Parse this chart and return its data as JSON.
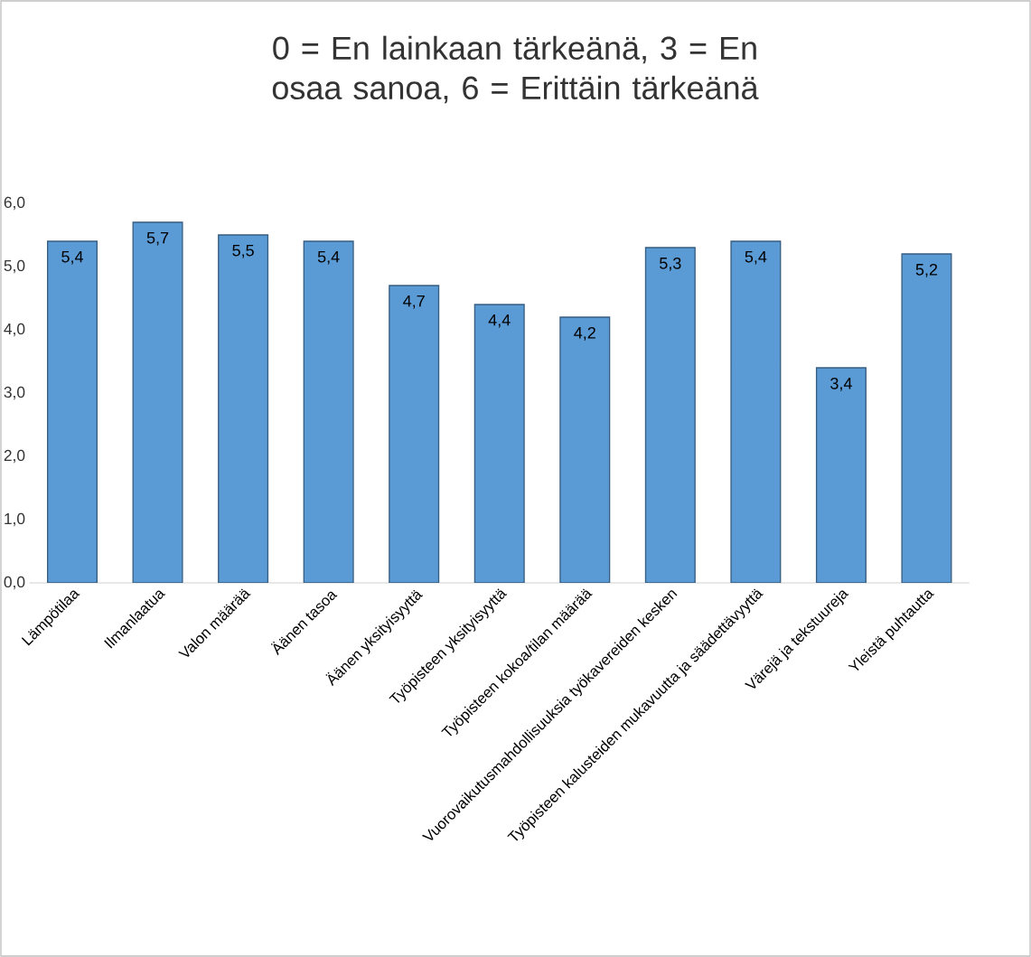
{
  "chart_data": {
    "type": "bar",
    "title": "0 = En lainkaan tärkeänä, 3 = En osaa sanoa, 6 = Erittäin tärkeänä",
    "categories": [
      "Lämpötilaa",
      "Ilmanlaatua",
      "Valon määrää",
      "Äänen tasoa",
      "Äänen yksityisyyttä",
      "Työpisteen yksityisyyttä",
      "Työpisteen kokoa/tilan määrää",
      "Vuorovaikutusmahdollisuuksia työkavereiden kesken",
      "Työpisteen kalusteiden mukavuutta ja säädettävyyttä",
      "Värejä ja tekstuureja",
      "Yleistä puhtautta"
    ],
    "values": [
      5.4,
      5.7,
      5.5,
      5.4,
      4.7,
      4.4,
      4.2,
      5.3,
      5.4,
      3.4,
      5.2
    ],
    "value_labels": [
      "5,4",
      "5,7",
      "5,5",
      "5,4",
      "4,7",
      "4,4",
      "4,2",
      "5,3",
      "5,4",
      "3,4",
      "5,2"
    ],
    "color": "#5b9bd5",
    "ylim": [
      0,
      6
    ],
    "yticks": [
      {
        "value": 0,
        "label": "0,0"
      },
      {
        "value": 1,
        "label": "1,0"
      },
      {
        "value": 2,
        "label": "2,0"
      },
      {
        "value": 3,
        "label": "3,0"
      },
      {
        "value": 4,
        "label": "4,0"
      },
      {
        "value": 5,
        "label": "5,0"
      },
      {
        "value": 6,
        "label": "6,0"
      }
    ]
  }
}
